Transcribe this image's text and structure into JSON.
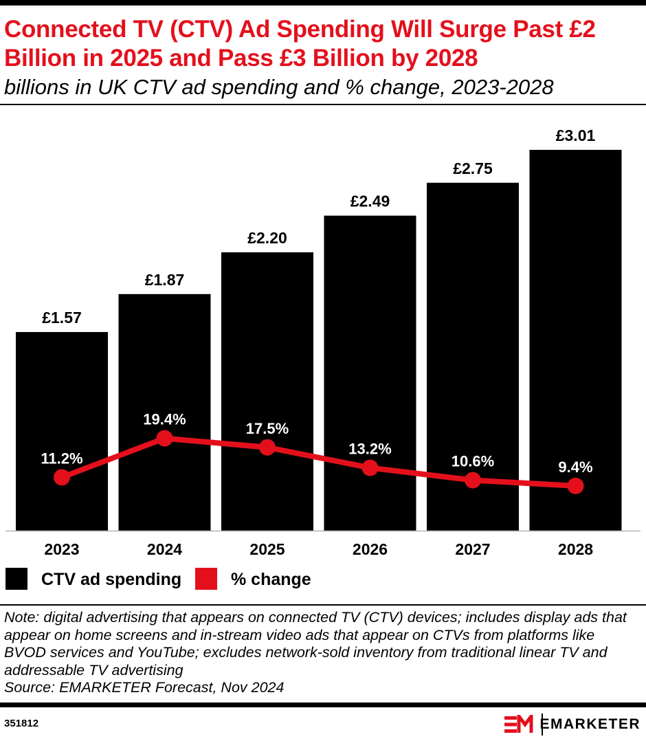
{
  "header": {
    "title": "Connected TV (CTV) Ad Spending Will Surge Past £2 Billion in 2025 and Pass £3 Billion by 2028",
    "subtitle": "billions in UK CTV ad spending and % change, 2023-2028"
  },
  "colors": {
    "accent": "#e3101c",
    "bars": "#000000",
    "text": "#000000"
  },
  "chart_data": {
    "type": "bar",
    "categories": [
      "2023",
      "2024",
      "2025",
      "2026",
      "2027",
      "2028"
    ],
    "series": [
      {
        "name": "CTV ad spending",
        "type": "bar",
        "values": [
          1.57,
          1.87,
          2.2,
          2.49,
          2.75,
          3.01
        ],
        "labels": [
          "£1.57",
          "£1.87",
          "£2.20",
          "£2.49",
          "£2.75",
          "£3.01"
        ],
        "color": "#000000"
      },
      {
        "name": "% change",
        "type": "line",
        "values": [
          11.2,
          19.4,
          17.5,
          13.2,
          10.6,
          9.4
        ],
        "labels": [
          "11.2%",
          "19.4%",
          "17.5%",
          "13.2%",
          "10.6%",
          "9.4%"
        ],
        "color": "#e3101c"
      }
    ],
    "ylim": [
      0,
      3.01
    ],
    "y2lim": [
      0,
      80
    ],
    "grid": false,
    "legend": "bottom-left"
  },
  "legend": {
    "items": [
      {
        "label": "CTV ad spending",
        "color": "#000000"
      },
      {
        "label": "% change",
        "color": "#e3101c"
      }
    ]
  },
  "footer": {
    "note": "Note: digital advertising that appears on connected TV (CTV) devices; includes display ads that appear on home screens and in-stream video ads that appear on CTVs from platforms like BVOD services and YouTube; excludes network-sold inventory from traditional linear TV and addressable TV advertising",
    "source": "Source: EMARKETER Forecast, Nov 2024",
    "chart_id": "351812",
    "brand": "EMARKETER",
    "brand_logo_icon": "em-logo-icon"
  }
}
